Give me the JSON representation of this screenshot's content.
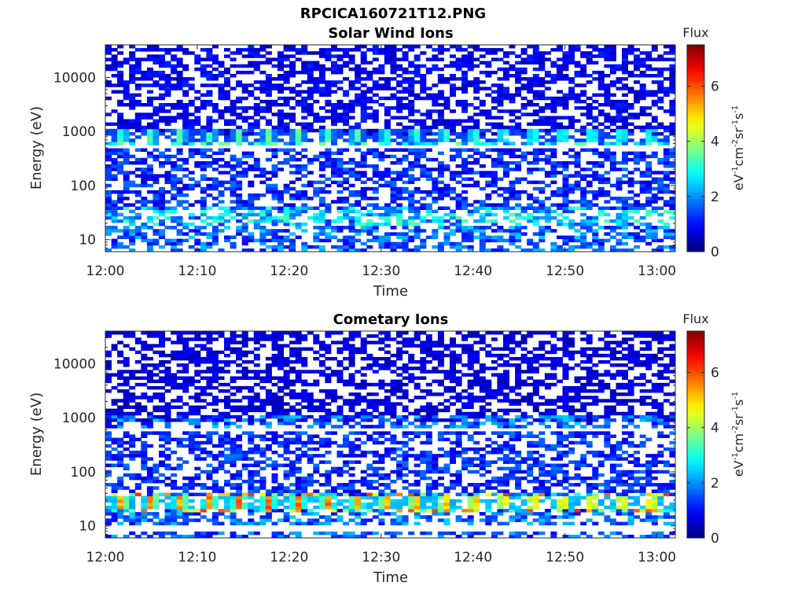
{
  "figure": {
    "title": "RPCICA160721T12.PNG"
  },
  "colorbar": {
    "label": "Flux",
    "unit_base": [
      "eV",
      "cm",
      "sr",
      "s"
    ],
    "unit_exp": [
      "-1",
      "-2",
      "-1",
      "-1"
    ],
    "ticks": [
      "0",
      "2",
      "4",
      "6"
    ],
    "range": [
      0,
      7.5
    ],
    "colormap": "jet"
  },
  "chart_data": [
    {
      "type": "heatmap",
      "title": "Solar Wind Ions",
      "xlabel": "Time",
      "ylabel": "Energy (eV)",
      "x_range": [
        "12:00",
        "13:02"
      ],
      "x_ticks": [
        "12:00",
        "12:10",
        "12:20",
        "12:30",
        "12:40",
        "12:50",
        "13:00"
      ],
      "y_scale": "log",
      "y_range": [
        6,
        40000
      ],
      "y_ticks": [
        "10",
        "100",
        "1000",
        "10000"
      ],
      "bands": [
        {
          "energy_ev": "7",
          "max_flux": 2.5
        },
        {
          "energy_ev": "9",
          "max_flux": 2.2
        },
        {
          "energy_ev": "12-16",
          "max_flux": 2.5
        },
        {
          "energy_ev": "20-35",
          "max_flux": 3.5
        },
        {
          "energy_ev": "40-400",
          "max_flux": 1.8
        },
        {
          "energy_ev": "700-1000",
          "max_flux": 3.8
        },
        {
          "energy_ev": "1000-40000",
          "max_flux": 1.2
        }
      ],
      "periodic_feature": {
        "energy_ev": "850",
        "period_min": 3.2
      }
    },
    {
      "type": "heatmap",
      "title": "Cometary Ions",
      "xlabel": "Time",
      "ylabel": "Energy (eV)",
      "x_range": [
        "12:00",
        "13:02"
      ],
      "x_ticks": [
        "12:00",
        "12:10",
        "12:20",
        "12:30",
        "12:40",
        "12:50",
        "13:00"
      ],
      "y_scale": "log",
      "y_range": [
        6,
        40000
      ],
      "y_ticks": [
        "10",
        "100",
        "1000",
        "10000"
      ],
      "bands": [
        {
          "energy_ev": "7",
          "max_flux": 2.3
        },
        {
          "energy_ev": "12-18",
          "max_flux": 2.5
        },
        {
          "energy_ev": "20-35",
          "max_flux": 6.3
        },
        {
          "energy_ev": "40-500",
          "max_flux": 1.8
        },
        {
          "energy_ev": "750-1000",
          "max_flux": 2.5
        },
        {
          "energy_ev": "1000-40000",
          "max_flux": 1.0
        }
      ],
      "periodic_feature": {
        "energy_ev": "26",
        "period_min": 3.2
      }
    }
  ]
}
